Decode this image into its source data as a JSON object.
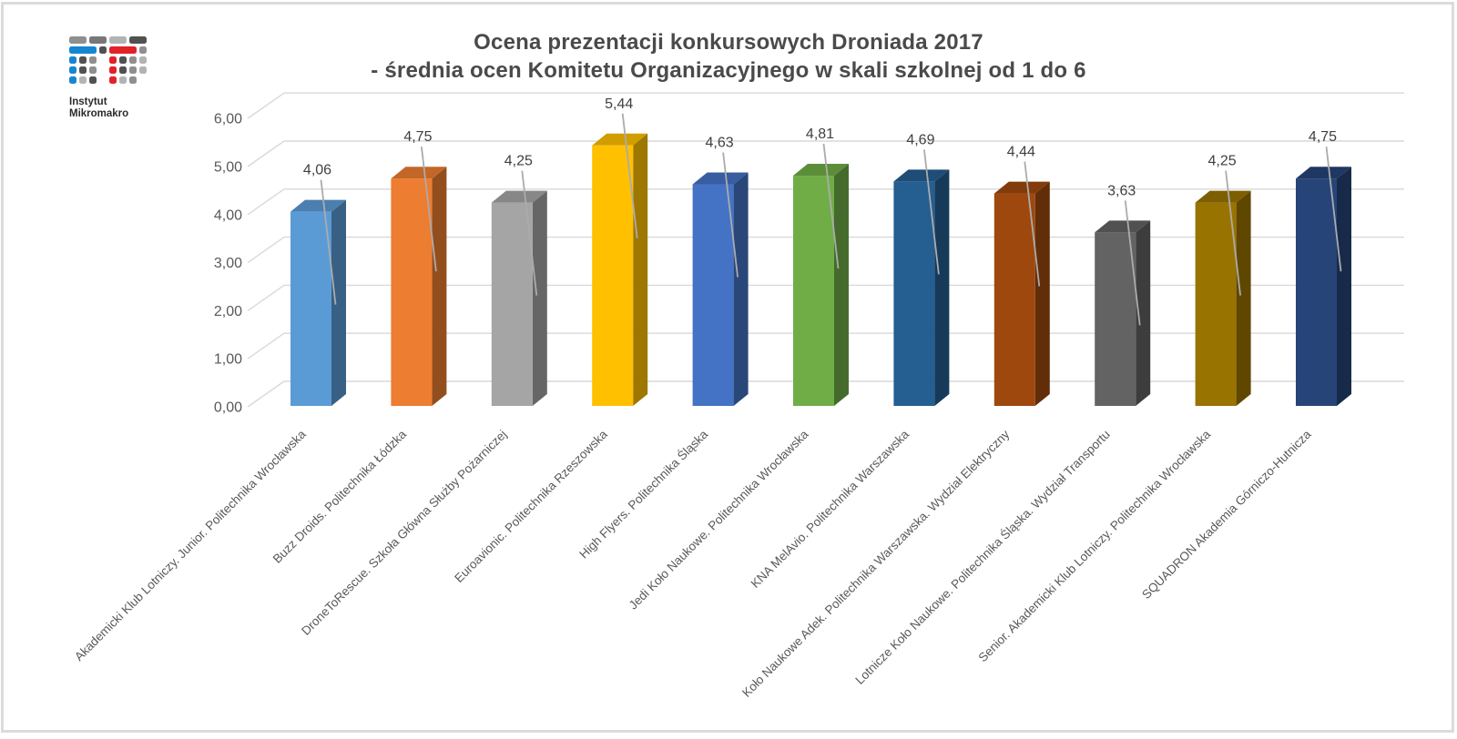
{
  "logo": {
    "line1": "Instytut",
    "line2": "Mikromakro",
    "blue": "#1786d2",
    "red": "#e32129",
    "gray_dark": "#515151",
    "gray_mid": "#8f8f8f",
    "gray_mid2": "#787878",
    "gray_light": "#b3b3b3"
  },
  "title": {
    "line1": "Ocena prezentacji konkursowych Droniada 2017",
    "line2": "- średnia ocen Komitetu Organizacyjnego w skali szkolnej od 1 do 6"
  },
  "chart_data": {
    "type": "bar",
    "style": "3d-column",
    "title": "Ocena prezentacji konkursowych Droniada 2017 - średnia ocen Komitetu Organizacyjnego w skali szkolnej od 1 do 6",
    "xlabel": "",
    "ylabel": "",
    "ylim": [
      0,
      6
    ],
    "grid": true,
    "legend": false,
    "categories": [
      "Akademicki Klub Lotniczy. Junior. Politechnika Wrocławska",
      "Buzz Droids. Politechnika Łódzka",
      "DroneToRescue. Szkoła Główna Służby Pożarniczej",
      "Euroavionic. Politechnika Rzeszowska",
      "High Flyers. Politechnika Śląska",
      "Jedi Koło Naukowe. Politechnika Wrocławska",
      "KNA MelAvio. Politechnika Warszawska",
      "Koło Naukowe Adek. Politechnika Warszawska. Wydział Elektryczny",
      "Lotnicze Koło Naukowe. Politechnika Śląska. Wydział Transportu",
      "Senior. Akademicki Klub Lotniczy. Politechnika Wrocławska",
      "SQUADRON Akademia Górniczo-Hutnicza"
    ],
    "values": [
      4.06,
      4.75,
      4.25,
      5.44,
      4.63,
      4.81,
      4.69,
      4.44,
      3.63,
      4.25,
      4.75
    ],
    "value_labels": [
      "4,06",
      "4,75",
      "4,25",
      "5,44",
      "4,63",
      "4,81",
      "4,69",
      "4,44",
      "3,63",
      "4,25",
      "4,75"
    ],
    "bar_colors": [
      "#5B9BD5",
      "#ED7D31",
      "#A5A5A5",
      "#FFC000",
      "#4472C4",
      "#70AD47",
      "#255E91",
      "#9E480E",
      "#636363",
      "#997300",
      "#264478"
    ],
    "y_tick_values": [
      0,
      1,
      2,
      3,
      4,
      5,
      6
    ],
    "y_ticks": [
      "0,00",
      "1,00",
      "2,00",
      "3,00",
      "4,00",
      "5,00",
      "6,00"
    ],
    "gridline_color": "#D9D9D9",
    "axis_label_color": "#595959",
    "value_label_color": "#404040",
    "leader_line_color": "#ABABAB"
  }
}
